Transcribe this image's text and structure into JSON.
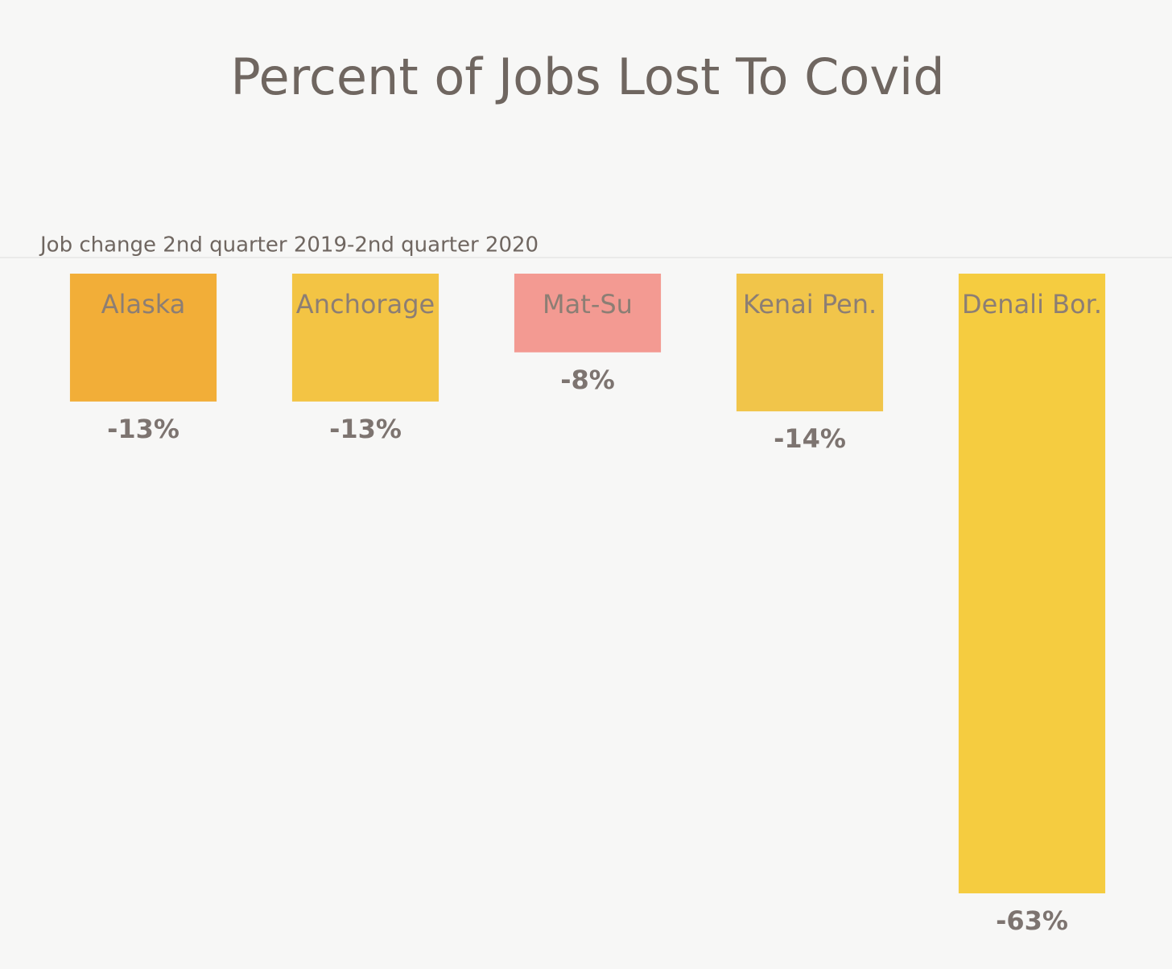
{
  "chart_data": {
    "type": "bar",
    "title": "Percent of Jobs Lost To Covid",
    "subtitle": "Job change 2nd quarter 2019-2nd quarter 2020",
    "categories": [
      "Alaska",
      "Anchorage",
      "Mat-Su",
      "Kenai Pen.",
      "Denali Bor."
    ],
    "values": [
      -13,
      -13,
      -8,
      -14,
      -63
    ],
    "value_labels": [
      "-13%",
      "-13%",
      "-8%",
      "-14%",
      "-63%"
    ],
    "colors": [
      "#f2ae38",
      "#f3c444",
      "#f39a92",
      "#f1c54a",
      "#f5cc40"
    ]
  }
}
